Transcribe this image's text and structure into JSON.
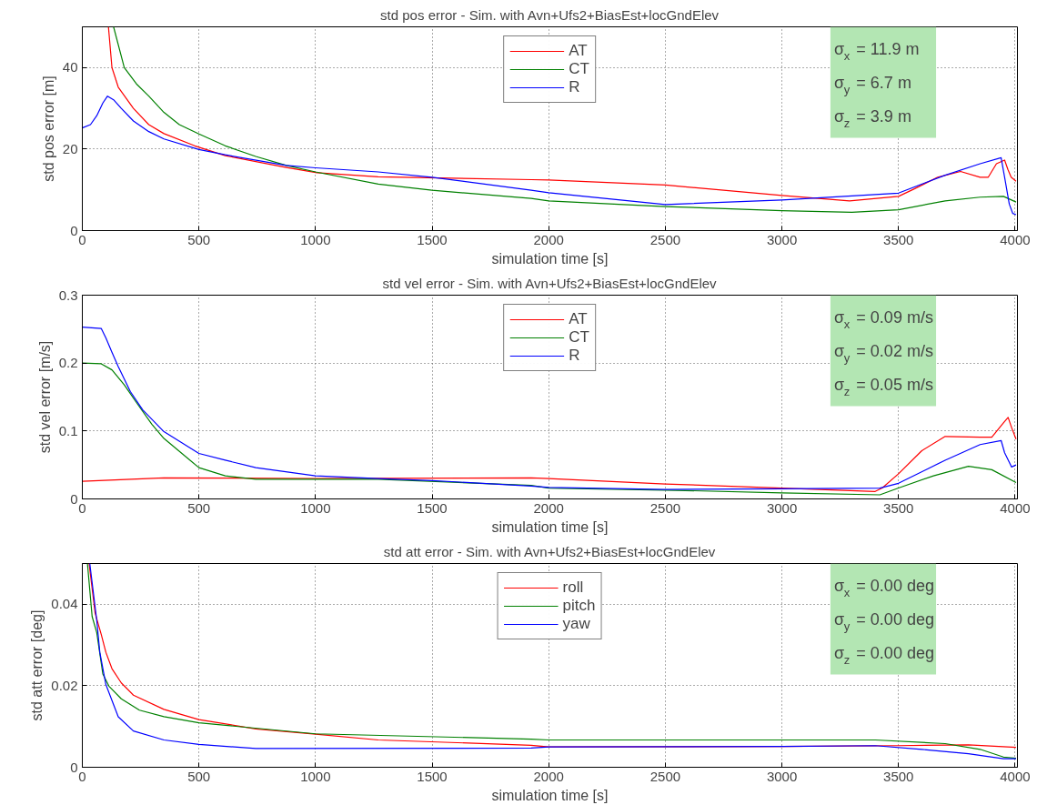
{
  "chart_data": [
    {
      "type": "line",
      "title": "std pos error - Sim. with Avn+Ufs2+BiasEst+locGndElev",
      "xlabel": "simulation time [s]",
      "ylabel": "std pos error [m]",
      "xlim": [
        0,
        4010
      ],
      "xticks": [
        0,
        500,
        1000,
        1500,
        2000,
        2500,
        3000,
        3500,
        4000
      ],
      "ylim": [
        0,
        50
      ],
      "yticks": [
        0,
        20,
        40
      ],
      "grid": true,
      "legend": "top",
      "line_style": "solid",
      "annotations": [
        "σ$_{x}$ = 11.9 m",
        "σ$_{y}$ = 6.7 m",
        "σ$_{z}$ = 3.9 m"
      ],
      "series": [
        {
          "name": "AT",
          "color": "#ff0000",
          "x": [
            112,
            127,
            154,
            219,
            285,
            350,
            482,
            613,
            875,
            1006,
            1268,
            1925,
            2000,
            2500,
            3000,
            3290,
            3500,
            3570,
            3668,
            3766,
            3850,
            3885,
            3920,
            3955,
            3969,
            3983,
            4004
          ],
          "values": [
            50,
            40,
            35.2,
            30,
            26,
            23.8,
            20.8,
            18.4,
            15.5,
            14.2,
            13.2,
            12.5,
            12.4,
            11.2,
            8.6,
            7.3,
            8.4,
            10.3,
            13.1,
            14.5,
            13.1,
            13.1,
            16.4,
            17.3,
            15,
            13.1,
            12.1
          ]
        },
        {
          "name": "CT",
          "color": "#008000",
          "x": [
            134,
            180,
            232,
            285,
            350,
            416,
            500,
            613,
            744,
            875,
            1000,
            1269,
            1499,
            1925,
            2000,
            2500,
            3000,
            3300,
            3500,
            3700,
            3850,
            3950,
            4004
          ],
          "values": [
            50,
            40,
            36,
            33,
            29,
            26,
            23.7,
            20.8,
            18.2,
            16,
            14.4,
            11.4,
            9.9,
            7.9,
            7.3,
            5.9,
            4.9,
            4.5,
            5.1,
            7.3,
            8.2,
            8.4,
            7.0
          ]
        },
        {
          "name": "R",
          "color": "#0000ff",
          "x": [
            0,
            35,
            62,
            88,
            108,
            134,
            167,
            219,
            285,
            350,
            500,
            613,
            875,
            1000,
            1269,
            1499,
            1925,
            2000,
            2500,
            3000,
            3500,
            3700,
            3850,
            3940,
            3955,
            3975,
            3990,
            4004
          ],
          "values": [
            25.2,
            26,
            28.2,
            31.3,
            33,
            32.1,
            30,
            26.9,
            24.3,
            22.5,
            19.9,
            18.6,
            16,
            15.4,
            14.4,
            13.1,
            9.9,
            9.3,
            6.4,
            7.5,
            9.2,
            13.6,
            16.4,
            17.9,
            13.1,
            6.5,
            4.2,
            3.9
          ]
        }
      ]
    },
    {
      "type": "line",
      "title": "std vel error - Sim. with Avn+Ufs2+BiasEst+locGndElev",
      "xlabel": "simulation time [s]",
      "ylabel": "std vel error [m/s]",
      "xlim": [
        0,
        4010
      ],
      "xticks": [
        0,
        500,
        1000,
        1500,
        2000,
        2500,
        3000,
        3500,
        4000
      ],
      "ylim": [
        0,
        0.3
      ],
      "yticks": [
        0,
        0.1,
        0.2,
        0.3
      ],
      "grid": true,
      "legend": "top",
      "line_style": "solid",
      "annotations": [
        "σ$_{x}$ = 0.09 m/s",
        "σ$_{y}$ = 0.02 m/s",
        "σ$_{z}$ = 0.05 m/s"
      ],
      "series": [
        {
          "name": "AT",
          "color": "#ff0000",
          "x": [
            0,
            350,
            1000,
            1925,
            2000,
            2500,
            3000,
            3400,
            3430,
            3500,
            3600,
            3700,
            3850,
            3900,
            3950,
            3970,
            3985,
            4004
          ],
          "values": [
            0.026,
            0.031,
            0.03,
            0.031,
            0.03,
            0.022,
            0.016,
            0.011,
            0.016,
            0.037,
            0.071,
            0.092,
            0.091,
            0.091,
            0.112,
            0.12,
            0.105,
            0.088
          ]
        },
        {
          "name": "CT",
          "color": "#008000",
          "x": [
            0,
            81,
            127,
            180,
            232,
            298,
            350,
            500,
            613,
            744,
            1269,
            1925,
            2000,
            2500,
            3000,
            3420,
            3500,
            3650,
            3800,
            3900,
            4004
          ],
          "values": [
            0.2,
            0.199,
            0.19,
            0.168,
            0.142,
            0.11,
            0.089,
            0.046,
            0.034,
            0.029,
            0.029,
            0.02,
            0.016,
            0.013,
            0.009,
            0.006,
            0.016,
            0.034,
            0.048,
            0.043,
            0.024
          ]
        },
        {
          "name": "R",
          "color": "#0000ff",
          "x": [
            0,
            81,
            101,
            127,
            154,
            206,
            259,
            350,
            500,
            613,
            744,
            1000,
            1269,
            1499,
            1925,
            2000,
            2500,
            3000,
            3420,
            3500,
            3700,
            3850,
            3940,
            3955,
            3985,
            4004
          ],
          "values": [
            0.253,
            0.251,
            0.237,
            0.216,
            0.195,
            0.158,
            0.131,
            0.099,
            0.067,
            0.057,
            0.046,
            0.034,
            0.03,
            0.027,
            0.019,
            0.017,
            0.014,
            0.015,
            0.016,
            0.023,
            0.057,
            0.08,
            0.086,
            0.068,
            0.047,
            0.05
          ]
        }
      ]
    },
    {
      "type": "line",
      "title": "std att error - Sim. with Avn+Ufs2+BiasEst+locGndElev",
      "xlabel": "simulation time [s]",
      "ylabel": "std att error [deg]",
      "xlim": [
        0,
        4010
      ],
      "xticks": [
        0,
        500,
        1000,
        1500,
        2000,
        2500,
        3000,
        3500,
        4000
      ],
      "ylim": [
        0,
        0.05
      ],
      "yticks": [
        0,
        0.02,
        0.04
      ],
      "grid": true,
      "legend": "top",
      "line_style": "solid",
      "annotations": [
        "σ$_{x}$ = 0.00 deg",
        "σ$_{y}$ = 0.00 deg",
        "σ$_{z}$ = 0.00 deg"
      ],
      "series": [
        {
          "name": "roll",
          "color": "#ff0000",
          "x": [
            29,
            55,
            81,
            101,
            127,
            167,
            219,
            350,
            500,
            744,
            1000,
            1269,
            1925,
            2000,
            3000,
            3500,
            3800,
            4004
          ],
          "values": [
            0.05,
            0.0378,
            0.0326,
            0.0282,
            0.0242,
            0.0207,
            0.0177,
            0.0142,
            0.0117,
            0.0094,
            0.0081,
            0.0067,
            0.0054,
            0.005,
            0.0051,
            0.0053,
            0.0055,
            0.0049
          ]
        },
        {
          "name": "pitch",
          "color": "#008000",
          "x": [
            22,
            42,
            62,
            88,
            114,
            167,
            245,
            350,
            500,
            1000,
            1925,
            2000,
            3000,
            3400,
            3700,
            3850,
            3950,
            4004
          ],
          "values": [
            0.05,
            0.037,
            0.033,
            0.0229,
            0.0199,
            0.0168,
            0.014,
            0.0124,
            0.0109,
            0.0082,
            0.0069,
            0.0067,
            0.0067,
            0.0067,
            0.0058,
            0.0044,
            0.0025,
            0.0022
          ]
        },
        {
          "name": "yaw",
          "color": "#0000ff",
          "x": [
            32,
            62,
            75,
            101,
            127,
            154,
            219,
            350,
            500,
            744,
            1925,
            2000,
            3000,
            3400,
            3600,
            3800,
            3950,
            4004
          ],
          "values": [
            0.05,
            0.036,
            0.0282,
            0.0203,
            0.0164,
            0.0124,
            0.0089,
            0.0067,
            0.0056,
            0.0046,
            0.0047,
            0.005,
            0.0051,
            0.0053,
            0.0044,
            0.0033,
            0.0021,
            0.0021
          ]
        }
      ]
    }
  ]
}
